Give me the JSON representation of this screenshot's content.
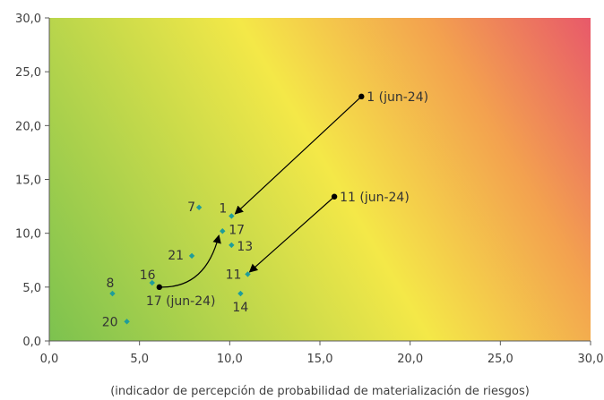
{
  "chart_data": {
    "type": "scatter",
    "title": "",
    "xlabel": "(indicador de percepción de probabilidad de materialización de riesgos)",
    "ylabel": "",
    "xlim": [
      0,
      30
    ],
    "ylim": [
      0,
      30
    ],
    "x_ticks": [
      "0,0",
      "5,0",
      "10,0",
      "15,0",
      "20,0",
      "25,0",
      "30,0"
    ],
    "y_ticks": [
      "0,0",
      "5,0",
      "10,0",
      "15,0",
      "20,0",
      "25,0",
      "30,0"
    ],
    "grid": false,
    "legend": "none",
    "background": "heatmap gradient green (bottom-left) to yellow to red (top-right)",
    "colors": {
      "gradient_green": "#7cc24f",
      "gradient_yellow": "#f4e848",
      "gradient_orange": "#f3a14f",
      "gradient_red": "#e8596a",
      "current_point": "#1f9d9a",
      "previous_point": "#000000",
      "arrow": "#000000"
    },
    "series": [
      {
        "marker": "diamond",
        "points": [
          {
            "label": "1",
            "x": 10.1,
            "y": 11.6
          },
          {
            "label": "7",
            "x": 8.3,
            "y": 12.4
          },
          {
            "label": "17",
            "x": 9.6,
            "y": 10.2
          },
          {
            "label": "13",
            "x": 10.1,
            "y": 8.9
          },
          {
            "label": "21",
            "x": 7.9,
            "y": 7.9
          },
          {
            "label": "11",
            "x": 11.0,
            "y": 6.2
          },
          {
            "label": "14",
            "x": 10.6,
            "y": 4.4
          },
          {
            "label": "16",
            "x": 5.7,
            "y": 5.4
          },
          {
            "label": "8",
            "x": 3.5,
            "y": 4.4
          },
          {
            "label": "20",
            "x": 4.3,
            "y": 1.8
          }
        ]
      },
      {
        "marker": "circle",
        "points": [
          {
            "label": "1 (jun-24)",
            "x": 17.3,
            "y": 22.7
          },
          {
            "label": "11 (jun-24)",
            "x": 15.8,
            "y": 13.4
          },
          {
            "label": "17 (jun-24)",
            "x": 6.1,
            "y": 5.0
          }
        ]
      }
    ],
    "arrows": [
      {
        "from": [
          17.3,
          22.7
        ],
        "to": [
          10.3,
          11.8
        ],
        "curved": false
      },
      {
        "from": [
          15.8,
          13.4
        ],
        "to": [
          11.1,
          6.4
        ],
        "curved": false
      },
      {
        "from": [
          6.1,
          5.0
        ],
        "to": [
          9.4,
          9.8
        ],
        "curved": true
      }
    ]
  }
}
